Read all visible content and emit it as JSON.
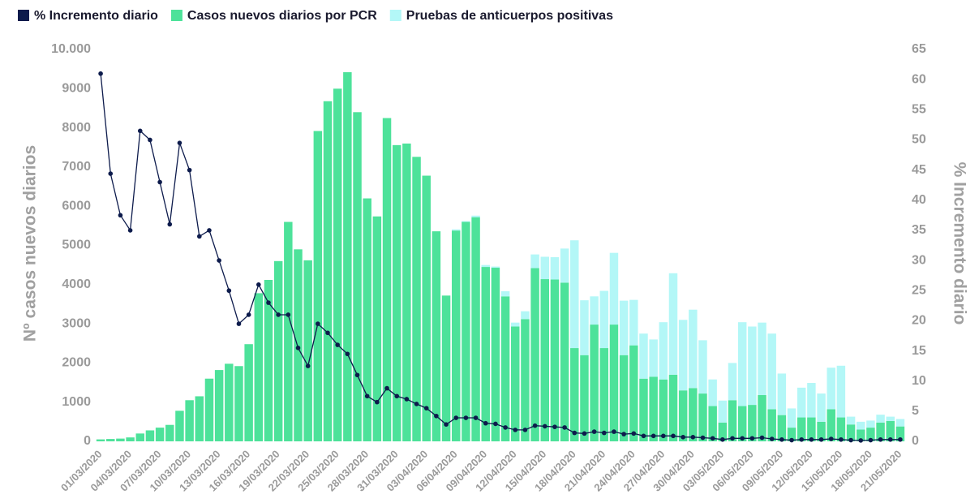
{
  "chart_data": {
    "type": "bar",
    "stacked": true,
    "y_label": "Nº casos nuevos diarios",
    "y2_label": "% Incremento diario",
    "categories": [
      "01/03/2020",
      null,
      null,
      "04/03/2020",
      null,
      null,
      "07/03/2020",
      null,
      null,
      "10/03/2020",
      null,
      null,
      "13/03/2020",
      null,
      null,
      "16/03/2020",
      null,
      null,
      "19/03/2020",
      null,
      null,
      "22/03/2020",
      null,
      null,
      "25/03/2020",
      null,
      null,
      "28/03/2020",
      null,
      null,
      "31/03/2020",
      null,
      null,
      "03/04/2020",
      null,
      null,
      "06/04/2020",
      null,
      null,
      "09/04/2020",
      null,
      null,
      "12/04/2020",
      null,
      null,
      "15/04/2020",
      null,
      null,
      "18/04/2020",
      null,
      null,
      "21/04/2020",
      null,
      null,
      "24/04/2020",
      null,
      null,
      "27/04/2020",
      null,
      null,
      "30/04/2020",
      null,
      null,
      "03/05/2020",
      null,
      null,
      "06/05/2020",
      null,
      null,
      "09/05/2020",
      null,
      null,
      "12/05/2020",
      null,
      null,
      "15/05/2020",
      null,
      null,
      "18/05/2020",
      null,
      null,
      "21/05/2020"
    ],
    "series": [
      {
        "name": "% Incremento diario",
        "color": "#0d1b4c",
        "type": "line",
        "axis": "y2",
        "values": [
          61,
          44.4,
          37.5,
          35,
          51.5,
          50,
          43,
          36,
          49.5,
          45,
          34,
          35,
          30,
          25,
          19.5,
          21,
          26,
          23,
          21,
          21,
          15.5,
          12.5,
          19.5,
          18,
          16,
          14.5,
          11,
          7.5,
          6.5,
          8.8,
          7.5,
          7,
          6.2,
          5.5,
          4.2,
          2.8,
          3.9,
          3.9,
          3.9,
          3,
          2.9,
          2.3,
          1.9,
          1.9,
          2.6,
          2.5,
          2.4,
          2.3,
          1.4,
          1.3,
          1.6,
          1.4,
          1.6,
          1.2,
          1.3,
          0.9,
          0.9,
          0.9,
          0.9,
          0.7,
          0.7,
          0.6,
          0.5,
          0.3,
          0.5,
          0.5,
          0.5,
          0.6,
          0.4,
          0.3,
          0.2,
          0.3,
          0.3,
          0.3,
          0.4,
          0.3,
          0.2,
          0.15,
          0.2,
          0.3,
          0.3,
          0.3
        ]
      },
      {
        "name": "Casos nuevos diarios por PCR",
        "color": "#4de29a",
        "type": "bar",
        "values": [
          50,
          60,
          70,
          100,
          200,
          280,
          350,
          420,
          780,
          1050,
          1150,
          1600,
          1820,
          1980,
          1920,
          2480,
          3780,
          4120,
          4600,
          5600,
          4900,
          4620,
          7920,
          8680,
          9000,
          9420,
          8400,
          6200,
          5740,
          8250,
          7560,
          7600,
          7260,
          6780,
          5360,
          3720,
          5380,
          5600,
          5720,
          4450,
          4430,
          3700,
          2930,
          3120,
          4420,
          4140,
          4130,
          4050,
          2380,
          2200,
          2980,
          2380,
          2980,
          2200,
          2450,
          1600,
          1650,
          1580,
          1700,
          1300,
          1360,
          1220,
          900,
          480,
          1050,
          900,
          930,
          1180,
          820,
          670,
          350,
          610,
          610,
          500,
          820,
          610,
          430,
          300,
          350,
          480,
          520,
          380
        ]
      },
      {
        "name": "Pruebas de anticuerpos positivas",
        "color": "#b3f7f7",
        "type": "bar",
        "values": [
          0,
          0,
          0,
          0,
          0,
          0,
          0,
          0,
          0,
          0,
          0,
          0,
          0,
          0,
          0,
          0,
          0,
          0,
          0,
          0,
          0,
          0,
          0,
          0,
          0,
          0,
          0,
          0,
          0,
          0,
          0,
          0,
          0,
          0,
          0,
          0,
          30,
          20,
          40,
          50,
          30,
          130,
          100,
          200,
          350,
          570,
          570,
          870,
          2750,
          1400,
          720,
          1460,
          1830,
          1390,
          1160,
          1150,
          950,
          1460,
          2590,
          1800,
          2000,
          1360,
          680,
          560,
          950,
          2140,
          2000,
          1850,
          1930,
          1060,
          490,
          760,
          880,
          720,
          1060,
          1320,
          200,
          200,
          180,
          200,
          110,
          190
        ]
      }
    ],
    "ylim": [
      0,
      10000
    ],
    "yticks": [
      0,
      1000,
      2000,
      3000,
      4000,
      5000,
      6000,
      7000,
      8000,
      9000,
      {
        "value": 10000,
        "label": "10.000"
      }
    ],
    "y2lim": [
      0,
      65
    ],
    "y2ticks": [
      0,
      5,
      10,
      15,
      20,
      25,
      30,
      35,
      40,
      45,
      50,
      55,
      60,
      65
    ],
    "grid": false,
    "legend": "top-left"
  }
}
